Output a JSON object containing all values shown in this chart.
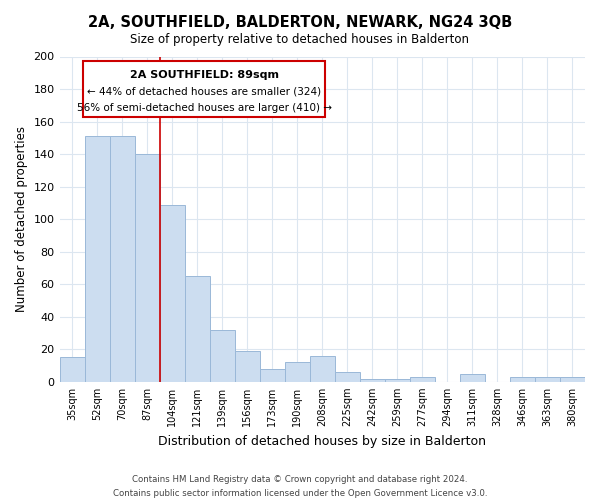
{
  "title": "2A, SOUTHFIELD, BALDERTON, NEWARK, NG24 3QB",
  "subtitle": "Size of property relative to detached houses in Balderton",
  "xlabel": "Distribution of detached houses by size in Balderton",
  "ylabel": "Number of detached properties",
  "categories": [
    "35sqm",
    "52sqm",
    "70sqm",
    "87sqm",
    "104sqm",
    "121sqm",
    "139sqm",
    "156sqm",
    "173sqm",
    "190sqm",
    "208sqm",
    "225sqm",
    "242sqm",
    "259sqm",
    "277sqm",
    "294sqm",
    "311sqm",
    "328sqm",
    "346sqm",
    "363sqm",
    "380sqm"
  ],
  "values": [
    15,
    151,
    151,
    140,
    109,
    65,
    32,
    19,
    8,
    12,
    16,
    6,
    2,
    2,
    3,
    0,
    5,
    0,
    3,
    3,
    3
  ],
  "bar_color": "#ccddf0",
  "bar_edge_color": "#9ab8d8",
  "marker_bin": 3,
  "marker_color": "#cc0000",
  "ylim": [
    0,
    200
  ],
  "yticks": [
    0,
    20,
    40,
    60,
    80,
    100,
    120,
    140,
    160,
    180,
    200
  ],
  "annotation_title": "2A SOUTHFIELD: 89sqm",
  "annotation_line1": "← 44% of detached houses are smaller (324)",
  "annotation_line2": "56% of semi-detached houses are larger (410) →",
  "annotation_box_color": "#ffffff",
  "annotation_box_edge_color": "#cc0000",
  "footer_line1": "Contains HM Land Registry data © Crown copyright and database right 2024.",
  "footer_line2": "Contains public sector information licensed under the Open Government Licence v3.0.",
  "background_color": "#ffffff",
  "grid_color": "#dce6f0"
}
